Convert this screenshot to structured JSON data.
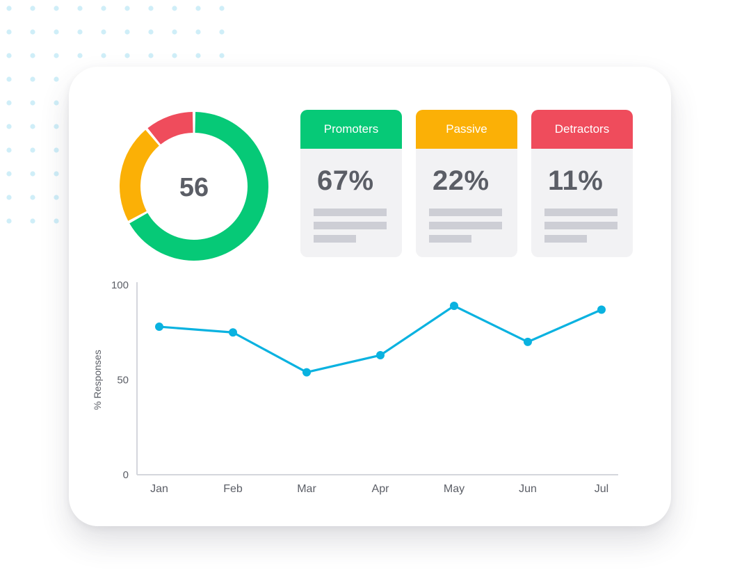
{
  "colors": {
    "promoters": "#06c977",
    "passive": "#fbb006",
    "detractors": "#ef4c5c",
    "line": "#0ab2e0",
    "dots": "#cfeef8"
  },
  "donut": {
    "score": "56"
  },
  "stats": [
    {
      "label": "Promoters",
      "value": "67%",
      "color_key": "promoters"
    },
    {
      "label": "Passive",
      "value": "22%",
      "color_key": "passive"
    },
    {
      "label": "Detractors",
      "value": "11%",
      "color_key": "detractors"
    }
  ],
  "chart_data": [
    {
      "type": "pie",
      "categories": [
        "Promoters",
        "Passive",
        "Detractors"
      ],
      "values": [
        67,
        22,
        11
      ]
    },
    {
      "type": "line",
      "title": "",
      "xlabel": "",
      "ylabel": "% Responses",
      "categories": [
        "Jan",
        "Feb",
        "Mar",
        "Apr",
        "May",
        "Jun",
        "Jul"
      ],
      "series": [
        {
          "values": [
            78,
            75,
            54,
            63,
            89,
            70,
            87
          ]
        }
      ],
      "ylim": [
        0,
        100
      ],
      "yticks": [
        0,
        50,
        100
      ],
      "grid": false,
      "legend": "none"
    }
  ]
}
